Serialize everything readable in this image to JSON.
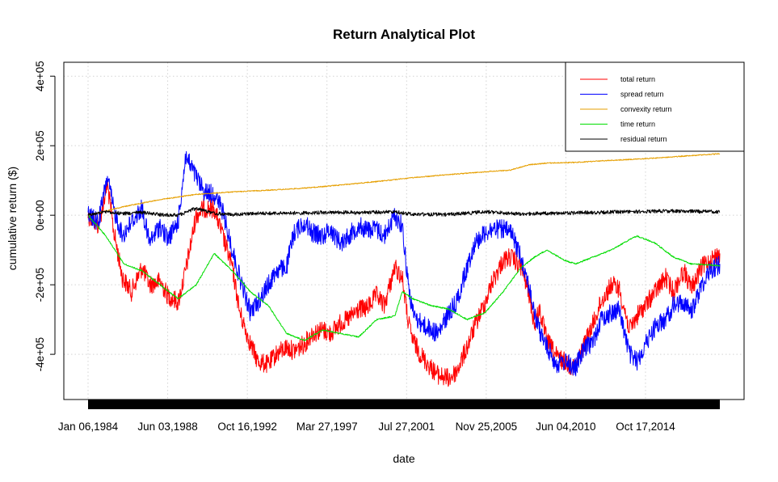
{
  "chart_data": {
    "type": "line",
    "title": "Return Analytical Plot",
    "xlabel": "date",
    "ylabel": "cumulative return ($)",
    "x_tick_labels": [
      "Jan 06,1984",
      "Jun 03,1988",
      "Oct 16,1992",
      "Mar 27,1997",
      "Jul 27,2001",
      "Nov 25,2005",
      "Jun 04,2010",
      "Oct 17,2014"
    ],
    "y_tick_labels": [
      "-4e+05",
      "-2e+05",
      "0e+00",
      "2e+05",
      "4e+05"
    ],
    "y_ticks": [
      -400000,
      -200000,
      0,
      200000,
      400000
    ],
    "ylim": [
      -530000,
      440000
    ],
    "xlim": [
      "1984-01-06",
      "2018-12-31"
    ],
    "grid": true,
    "legend_position": "top-right",
    "series": [
      {
        "name": "total return",
        "color": "#ff0000",
        "points": [
          [
            "1984-01-06",
            0
          ],
          [
            "1984-08-01",
            -30000
          ],
          [
            "1985-02-01",
            90000
          ],
          [
            "1985-06-01",
            -40000
          ],
          [
            "1985-12-01",
            -180000
          ],
          [
            "1986-06-01",
            -220000
          ],
          [
            "1987-01-01",
            -150000
          ],
          [
            "1987-06-01",
            -200000
          ],
          [
            "1988-01-01",
            -190000
          ],
          [
            "1988-06-01",
            -230000
          ],
          [
            "1989-01-01",
            -250000
          ],
          [
            "1989-06-01",
            -160000
          ],
          [
            "1990-01-01",
            0
          ],
          [
            "1990-06-01",
            20000
          ],
          [
            "1991-01-01",
            20000
          ],
          [
            "1991-06-01",
            -50000
          ],
          [
            "1992-01-01",
            -150000
          ],
          [
            "1992-06-01",
            -280000
          ],
          [
            "1993-01-01",
            -370000
          ],
          [
            "1993-06-01",
            -420000
          ],
          [
            "1994-01-01",
            -430000
          ],
          [
            "1994-06-01",
            -400000
          ],
          [
            "1995-01-01",
            -380000
          ],
          [
            "1995-06-01",
            -390000
          ],
          [
            "1996-01-01",
            -370000
          ],
          [
            "1996-06-01",
            -340000
          ],
          [
            "1997-01-01",
            -330000
          ],
          [
            "1997-06-01",
            -340000
          ],
          [
            "1998-01-01",
            -310000
          ],
          [
            "1998-06-01",
            -300000
          ],
          [
            "1999-01-01",
            -270000
          ],
          [
            "1999-06-01",
            -270000
          ],
          [
            "2000-01-01",
            -230000
          ],
          [
            "2000-06-01",
            -260000
          ],
          [
            "2001-01-01",
            -150000
          ],
          [
            "2001-06-01",
            -180000
          ],
          [
            "2001-10-01",
            -310000
          ],
          [
            "2002-01-01",
            -360000
          ],
          [
            "2002-06-01",
            -400000
          ],
          [
            "2003-01-01",
            -440000
          ],
          [
            "2003-06-01",
            -460000
          ],
          [
            "2004-01-01",
            -470000
          ],
          [
            "2004-06-01",
            -450000
          ],
          [
            "2005-01-01",
            -380000
          ],
          [
            "2005-06-01",
            -320000
          ],
          [
            "2006-01-01",
            -250000
          ],
          [
            "2006-06-01",
            -190000
          ],
          [
            "2007-01-01",
            -130000
          ],
          [
            "2007-06-01",
            -120000
          ],
          [
            "2008-01-01",
            -150000
          ],
          [
            "2008-06-01",
            -220000
          ],
          [
            "2008-10-01",
            -320000
          ],
          [
            "2009-01-01",
            -270000
          ],
          [
            "2009-06-01",
            -360000
          ],
          [
            "2010-01-01",
            -410000
          ],
          [
            "2010-06-01",
            -420000
          ],
          [
            "2011-01-01",
            -440000
          ],
          [
            "2011-06-01",
            -380000
          ],
          [
            "2012-01-01",
            -310000
          ],
          [
            "2012-06-01",
            -250000
          ],
          [
            "2013-01-01",
            -200000
          ],
          [
            "2013-06-01",
            -210000
          ],
          [
            "2014-01-01",
            -330000
          ],
          [
            "2014-06-01",
            -290000
          ],
          [
            "2015-01-01",
            -250000
          ],
          [
            "2015-06-01",
            -220000
          ],
          [
            "2016-01-01",
            -180000
          ],
          [
            "2016-06-01",
            -220000
          ],
          [
            "2017-01-01",
            -160000
          ],
          [
            "2017-06-01",
            -210000
          ],
          [
            "2018-01-01",
            -150000
          ],
          [
            "2018-06-01",
            -130000
          ],
          [
            "2018-12-31",
            -110000
          ]
        ]
      },
      {
        "name": "spread return",
        "color": "#0000ff",
        "points": [
          [
            "1984-01-06",
            0
          ],
          [
            "1984-08-01",
            -20000
          ],
          [
            "1985-02-01",
            110000
          ],
          [
            "1985-06-01",
            20000
          ],
          [
            "1985-12-01",
            -60000
          ],
          [
            "1986-06-01",
            -20000
          ],
          [
            "1987-01-01",
            20000
          ],
          [
            "1987-06-01",
            -80000
          ],
          [
            "1988-01-01",
            -30000
          ],
          [
            "1988-06-01",
            -70000
          ],
          [
            "1989-01-01",
            -20000
          ],
          [
            "1989-06-01",
            170000
          ],
          [
            "1990-01-01",
            110000
          ],
          [
            "1990-06-01",
            70000
          ],
          [
            "1991-01-01",
            60000
          ],
          [
            "1991-06-01",
            20000
          ],
          [
            "1992-01-01",
            -100000
          ],
          [
            "1992-06-01",
            -180000
          ],
          [
            "1993-01-01",
            -280000
          ],
          [
            "1993-06-01",
            -250000
          ],
          [
            "1994-01-01",
            -200000
          ],
          [
            "1994-06-01",
            -160000
          ],
          [
            "1995-01-01",
            -150000
          ],
          [
            "1995-06-01",
            -50000
          ],
          [
            "1996-01-01",
            -20000
          ],
          [
            "1996-06-01",
            -50000
          ],
          [
            "1997-01-01",
            -60000
          ],
          [
            "1997-06-01",
            -40000
          ],
          [
            "1998-01-01",
            -80000
          ],
          [
            "1998-06-01",
            -60000
          ],
          [
            "1999-01-01",
            -30000
          ],
          [
            "1999-06-01",
            -40000
          ],
          [
            "2000-01-01",
            -40000
          ],
          [
            "2000-06-01",
            -60000
          ],
          [
            "2001-01-01",
            0
          ],
          [
            "2001-06-01",
            -30000
          ],
          [
            "2001-10-01",
            -200000
          ],
          [
            "2002-01-01",
            -280000
          ],
          [
            "2002-06-01",
            -310000
          ],
          [
            "2003-01-01",
            -330000
          ],
          [
            "2003-06-01",
            -340000
          ],
          [
            "2004-01-01",
            -280000
          ],
          [
            "2004-06-01",
            -250000
          ],
          [
            "2005-01-01",
            -150000
          ],
          [
            "2005-06-01",
            -80000
          ],
          [
            "2006-01-01",
            -50000
          ],
          [
            "2006-06-01",
            -40000
          ],
          [
            "2007-01-01",
            -40000
          ],
          [
            "2007-06-01",
            -50000
          ],
          [
            "2008-01-01",
            -120000
          ],
          [
            "2008-06-01",
            -200000
          ],
          [
            "2008-10-01",
            -290000
          ],
          [
            "2009-01-01",
            -330000
          ],
          [
            "2009-06-01",
            -380000
          ],
          [
            "2010-01-01",
            -430000
          ],
          [
            "2010-06-01",
            -420000
          ],
          [
            "2011-01-01",
            -440000
          ],
          [
            "2011-06-01",
            -390000
          ],
          [
            "2012-01-01",
            -360000
          ],
          [
            "2012-06-01",
            -300000
          ],
          [
            "2013-01-01",
            -280000
          ],
          [
            "2013-06-01",
            -270000
          ],
          [
            "2014-01-01",
            -400000
          ],
          [
            "2014-06-01",
            -420000
          ],
          [
            "2015-01-01",
            -360000
          ],
          [
            "2015-06-01",
            -320000
          ],
          [
            "2016-01-01",
            -300000
          ],
          [
            "2016-06-01",
            -260000
          ],
          [
            "2017-01-01",
            -250000
          ],
          [
            "2017-06-01",
            -280000
          ],
          [
            "2018-01-01",
            -200000
          ],
          [
            "2018-06-01",
            -160000
          ],
          [
            "2018-12-31",
            -140000
          ]
        ]
      },
      {
        "name": "convexity return",
        "color": "#e69f00",
        "points": [
          [
            "1984-01-06",
            0
          ],
          [
            "1986-01-01",
            25000
          ],
          [
            "1988-01-01",
            45000
          ],
          [
            "1990-01-01",
            60000
          ],
          [
            "1992-01-01",
            67000
          ],
          [
            "1994-01-01",
            72000
          ],
          [
            "1996-01-01",
            78000
          ],
          [
            "1998-01-01",
            87000
          ],
          [
            "2000-01-01",
            97000
          ],
          [
            "2002-01-01",
            108000
          ],
          [
            "2004-01-01",
            117000
          ],
          [
            "2006-01-01",
            125000
          ],
          [
            "2007-06-01",
            130000
          ],
          [
            "2008-06-01",
            145000
          ],
          [
            "2009-06-01",
            150000
          ],
          [
            "2011-01-01",
            152000
          ],
          [
            "2013-01-01",
            158000
          ],
          [
            "2015-01-01",
            163000
          ],
          [
            "2017-01-01",
            170000
          ],
          [
            "2018-12-31",
            177000
          ]
        ]
      },
      {
        "name": "time return",
        "color": "#00dd00",
        "points": [
          [
            "1984-01-06",
            0
          ],
          [
            "1985-01-01",
            -60000
          ],
          [
            "1986-01-01",
            -140000
          ],
          [
            "1987-01-01",
            -160000
          ],
          [
            "1988-01-01",
            -200000
          ],
          [
            "1989-01-01",
            -240000
          ],
          [
            "1990-01-01",
            -200000
          ],
          [
            "1991-01-01",
            -110000
          ],
          [
            "1992-01-01",
            -160000
          ],
          [
            "1993-01-01",
            -220000
          ],
          [
            "1994-01-01",
            -260000
          ],
          [
            "1995-01-01",
            -340000
          ],
          [
            "1996-01-01",
            -360000
          ],
          [
            "1997-01-01",
            -330000
          ],
          [
            "1998-01-01",
            -340000
          ],
          [
            "1999-01-01",
            -350000
          ],
          [
            "2000-01-01",
            -300000
          ],
          [
            "2001-01-01",
            -290000
          ],
          [
            "2001-06-01",
            -220000
          ],
          [
            "2002-01-01",
            -240000
          ],
          [
            "2003-01-01",
            -260000
          ],
          [
            "2004-01-01",
            -270000
          ],
          [
            "2005-01-01",
            -300000
          ],
          [
            "2006-01-01",
            -280000
          ],
          [
            "2007-01-01",
            -220000
          ],
          [
            "2008-01-01",
            -150000
          ],
          [
            "2008-10-01",
            -120000
          ],
          [
            "2009-06-01",
            -100000
          ],
          [
            "2010-06-01",
            -130000
          ],
          [
            "2011-01-01",
            -140000
          ],
          [
            "2012-01-01",
            -120000
          ],
          [
            "2013-01-01",
            -100000
          ],
          [
            "2014-01-01",
            -70000
          ],
          [
            "2014-06-01",
            -60000
          ],
          [
            "2015-06-01",
            -80000
          ],
          [
            "2016-06-01",
            -120000
          ],
          [
            "2017-06-01",
            -140000
          ],
          [
            "2018-12-31",
            -145000
          ]
        ]
      },
      {
        "name": "residual return",
        "color": "#000000",
        "points": [
          [
            "1984-01-06",
            0
          ],
          [
            "1985-01-01",
            10000
          ],
          [
            "1986-01-01",
            5000
          ],
          [
            "1987-01-01",
            8000
          ],
          [
            "1988-01-01",
            2000
          ],
          [
            "1989-01-01",
            0
          ],
          [
            "1990-01-01",
            20000
          ],
          [
            "1991-01-01",
            5000
          ],
          [
            "1992-01-01",
            2000
          ],
          [
            "1993-01-01",
            5000
          ],
          [
            "1995-01-01",
            6000
          ],
          [
            "1997-01-01",
            8000
          ],
          [
            "1999-01-01",
            8000
          ],
          [
            "2001-01-01",
            10000
          ],
          [
            "2002-01-01",
            3000
          ],
          [
            "2004-01-01",
            2000
          ],
          [
            "2006-01-01",
            10000
          ],
          [
            "2008-01-01",
            4000
          ],
          [
            "2010-01-01",
            6000
          ],
          [
            "2012-01-01",
            8000
          ],
          [
            "2014-01-01",
            10000
          ],
          [
            "2016-01-01",
            12000
          ],
          [
            "2018-12-31",
            10000
          ]
        ]
      }
    ]
  }
}
